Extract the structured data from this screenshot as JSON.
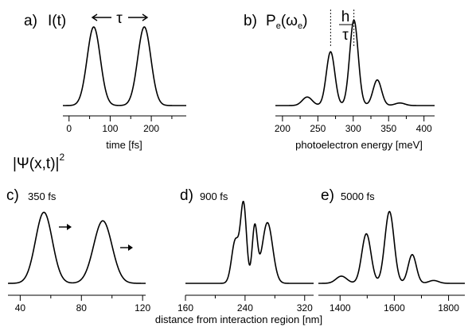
{
  "chart_data": [
    {
      "id": "a",
      "type": "line",
      "panel_label": "a)",
      "title": "I(t)",
      "annotation": "τ",
      "xlabel": "time [fs]",
      "ylabel": "",
      "xlim": [
        -15,
        285
      ],
      "ylim": [
        0,
        1.05
      ],
      "xticks": [
        0,
        100,
        200
      ],
      "xticks_minor": [
        50,
        150,
        250
      ],
      "peaks": [
        {
          "center": 60,
          "sigma": 16,
          "amp": 1.0
        },
        {
          "center": 183,
          "sigma": 16,
          "amp": 1.0
        }
      ],
      "grid": false,
      "legend": "none"
    },
    {
      "id": "b",
      "type": "line",
      "panel_label": "b)",
      "title": "P",
      "title_sub": "e",
      "title_arg": "(ω",
      "title_arg_sub": "e",
      "title_close": ")",
      "annotation_num": "h",
      "annotation_den": "τ",
      "xlabel": "photoelectron energy [meV]",
      "ylabel": "",
      "xlim": [
        190,
        415
      ],
      "ylim": [
        0,
        1.05
      ],
      "xticks": [
        200,
        250,
        300,
        350,
        400
      ],
      "xticks_minor": [
        225,
        275,
        325,
        375
      ],
      "dotted_lines_x": [
        268,
        301
      ],
      "peaks": [
        {
          "center": 235,
          "sigma": 7,
          "amp": 0.1
        },
        {
          "center": 268,
          "sigma": 6,
          "amp": 0.63
        },
        {
          "center": 301,
          "sigma": 6,
          "amp": 1.0
        },
        {
          "center": 334,
          "sigma": 6,
          "amp": 0.3
        },
        {
          "center": 366,
          "sigma": 7,
          "amp": 0.03
        }
      ],
      "grid": false,
      "legend": "none"
    },
    {
      "id": "c",
      "type": "line",
      "panel_label": "c)",
      "sub_label": "350 fs",
      "xlabel": "",
      "ylabel": "",
      "xlim": [
        32,
        122
      ],
      "ylim": [
        0,
        1.05
      ],
      "xticks": [
        40,
        80,
        120
      ],
      "xticks_minor": [
        60,
        100
      ],
      "peaks": [
        {
          "center": 55.5,
          "sigma": 5.5,
          "amp": 1.0
        },
        {
          "center": 94,
          "sigma": 6,
          "amp": 0.88
        }
      ],
      "grid": false,
      "legend": "none"
    },
    {
      "id": "d",
      "type": "line",
      "panel_label": "d)",
      "sub_label": "900 fs",
      "xlabel": "",
      "ylabel": "",
      "xlim": [
        160,
        332
      ],
      "ylim": [
        0,
        1.05
      ],
      "xticks": [
        160,
        240,
        320
      ],
      "xticks_minor": [
        200,
        280
      ],
      "peaks": [
        {
          "center": 227,
          "sigma": 5,
          "amp": 0.55
        },
        {
          "center": 238,
          "sigma": 4,
          "amp": 1.0
        },
        {
          "center": 253,
          "sigma": 3.5,
          "amp": 0.72
        },
        {
          "center": 270,
          "sigma": 7,
          "amp": 0.78
        }
      ],
      "grid": false,
      "legend": "none"
    },
    {
      "id": "e",
      "type": "line",
      "panel_label": "e)",
      "sub_label": "5000 fs",
      "xlabel": "",
      "ylabel": "",
      "xlim": [
        1320,
        1860
      ],
      "ylim": [
        0,
        1.05
      ],
      "xticks": [
        1400,
        1600,
        1800
      ],
      "xticks_minor": [
        1500,
        1700
      ],
      "peaks": [
        {
          "center": 1405,
          "sigma": 20,
          "amp": 0.1
        },
        {
          "center": 1497,
          "sigma": 17,
          "amp": 0.69
        },
        {
          "center": 1582,
          "sigma": 17,
          "amp": 1.0
        },
        {
          "center": 1666,
          "sigma": 15,
          "amp": 0.4
        },
        {
          "center": 1745,
          "sigma": 18,
          "amp": 0.04
        }
      ],
      "grid": false,
      "legend": "none"
    }
  ],
  "row2_title": "|Ψ(x,t)|",
  "row2_title_sup": "2",
  "shared_xlabel": "distance from interaction region [nm]"
}
